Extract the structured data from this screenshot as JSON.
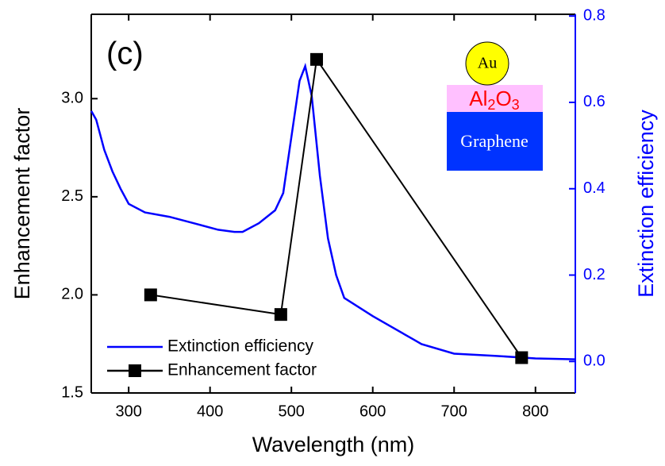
{
  "chart_data": {
    "type": "line",
    "panel_label": "(c)",
    "xlabel": "Wavelength (nm)",
    "ylabel": "Enhancement factor",
    "y2label": "Extinction efficiency",
    "xlim": [
      254,
      849
    ],
    "xticks": [
      300,
      400,
      500,
      600,
      700,
      800
    ],
    "ylim": [
      1.5,
      3.43
    ],
    "yticks": [
      {
        "value": 1.5,
        "label": "1.5"
      },
      {
        "value": 2.0,
        "label": "2.0"
      },
      {
        "value": 2.5,
        "label": "2.5"
      },
      {
        "value": 3.0,
        "label": "3.0"
      }
    ],
    "y2lim": [
      -0.073,
      0.804
    ],
    "y2ticks": [
      {
        "value": 0,
        "label": "0.0"
      },
      {
        "value": 0.2,
        "label": "0.2"
      },
      {
        "value": 0.4,
        "label": "0.4"
      },
      {
        "value": 0.6,
        "label": "0.6"
      },
      {
        "value": 0.8,
        "label": "0.8"
      }
    ],
    "series": [
      {
        "name": "Extinction efficiency",
        "color": "#0000ff",
        "axis": "y2",
        "markers": false,
        "x": [
          254,
          260,
          270,
          280,
          290,
          300,
          320,
          350,
          380,
          410,
          430,
          440,
          460,
          480,
          490,
          500,
          510,
          517,
          525,
          535,
          545,
          555,
          565,
          600,
          650,
          660,
          700,
          750,
          800,
          849
        ],
        "values": [
          0.58,
          0.56,
          0.49,
          0.44,
          0.4,
          0.365,
          0.345,
          0.335,
          0.32,
          0.305,
          0.3,
          0.3,
          0.32,
          0.35,
          0.39,
          0.52,
          0.65,
          0.684,
          0.615,
          0.43,
          0.285,
          0.2,
          0.147,
          0.105,
          0.051,
          0.04,
          0.018,
          0.013,
          0.007,
          0.005
        ]
      },
      {
        "name": "Enhancement factor",
        "color": "#000000",
        "axis": "y",
        "markers": true,
        "x": [
          327,
          487,
          531,
          783
        ],
        "values": [
          2.0,
          1.9,
          3.2,
          1.68
        ]
      }
    ],
    "legend": "lower left",
    "inset": {
      "particle": "Au",
      "oxide": [
        "Al",
        "2",
        "O",
        "3"
      ],
      "substrate": "Graphene"
    }
  }
}
